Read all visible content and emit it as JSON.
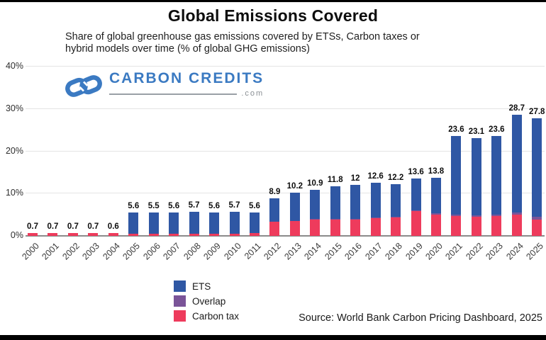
{
  "header": {
    "title": "Global Emissions Covered",
    "subtitle_line1": "Share of global greenhouse gas emissions covered by ETSs, Carbon taxes or",
    "subtitle_line2": "hybrid models over time (% of global GHG emissions)"
  },
  "logo": {
    "brand": "CARBON CREDITS",
    "tld": ".com",
    "brand_color": "#3b7ac2"
  },
  "chart_data": {
    "type": "bar",
    "stacked": true,
    "title": "Global Emissions Covered",
    "xlabel": "",
    "ylabel": "% of global GHG emissions",
    "ylim": [
      0,
      40
    ],
    "y_ticks": [
      "0%",
      "10%",
      "20%",
      "30%",
      "40%"
    ],
    "grid": true,
    "legend_position": "bottom-left",
    "years": [
      "2000",
      "2001",
      "2002",
      "2003",
      "2004",
      "2005",
      "2006",
      "2007",
      "2008",
      "2009",
      "2010",
      "2011",
      "2012",
      "2013",
      "2014",
      "2015",
      "2016",
      "2017",
      "2018",
      "2019",
      "2020",
      "2021",
      "2022",
      "2023",
      "2024",
      "2025"
    ],
    "total_labels": [
      "0.7",
      "0.7",
      "0.7",
      "0.7",
      "0.6",
      "5.6",
      "5.5",
      "5.6",
      "5.7",
      "5.6",
      "5.7",
      "5.6",
      "8.9",
      "10.2",
      "10.9",
      "11.8",
      "12",
      "12.6",
      "12.2",
      "13.6",
      "13.8",
      "23.6",
      "23.1",
      "23.6",
      "28.7",
      "27.8"
    ],
    "totals": [
      0.7,
      0.7,
      0.7,
      0.7,
      0.6,
      5.6,
      5.5,
      5.6,
      5.7,
      5.6,
      5.7,
      5.6,
      8.9,
      10.2,
      10.9,
      11.8,
      12,
      12.6,
      12.2,
      13.6,
      13.8,
      23.6,
      23.1,
      23.6,
      28.7,
      27.8
    ],
    "series": [
      {
        "name": "Carbon tax",
        "color": "#ee3b5c",
        "values": [
          0.7,
          0.7,
          0.7,
          0.7,
          0.6,
          0.5,
          0.5,
          0.5,
          0.5,
          0.5,
          0.5,
          0.6,
          3.3,
          3.5,
          4.0,
          4.0,
          4.0,
          4.3,
          4.4,
          5.8,
          5.0,
          4.7,
          4.5,
          4.7,
          5.0,
          3.8
        ]
      },
      {
        "name": "Overlap",
        "color": "#7a5498",
        "values": [
          0,
          0,
          0,
          0,
          0,
          0,
          0,
          0,
          0,
          0,
          0,
          0,
          0,
          0,
          0.1,
          0.1,
          0.1,
          0.1,
          0.1,
          0.2,
          0.4,
          0.3,
          0.3,
          0.4,
          0.5,
          0.8
        ]
      },
      {
        "name": "ETS",
        "color": "#2f57a4",
        "values": [
          0,
          0,
          0,
          0,
          0,
          5.1,
          5.0,
          5.1,
          5.2,
          5.1,
          5.2,
          5.0,
          5.6,
          6.7,
          6.8,
          7.7,
          7.9,
          8.2,
          7.7,
          7.6,
          8.4,
          18.6,
          18.3,
          18.5,
          23.2,
          23.2
        ]
      }
    ]
  },
  "legend": {
    "items": [
      {
        "label": "ETS",
        "color": "#2f57a4"
      },
      {
        "label": "Overlap",
        "color": "#7a5498"
      },
      {
        "label": "Carbon tax",
        "color": "#ee3b5c"
      }
    ]
  },
  "source": {
    "text": "Source: World Bank Carbon Pricing Dashboard, 2025"
  }
}
